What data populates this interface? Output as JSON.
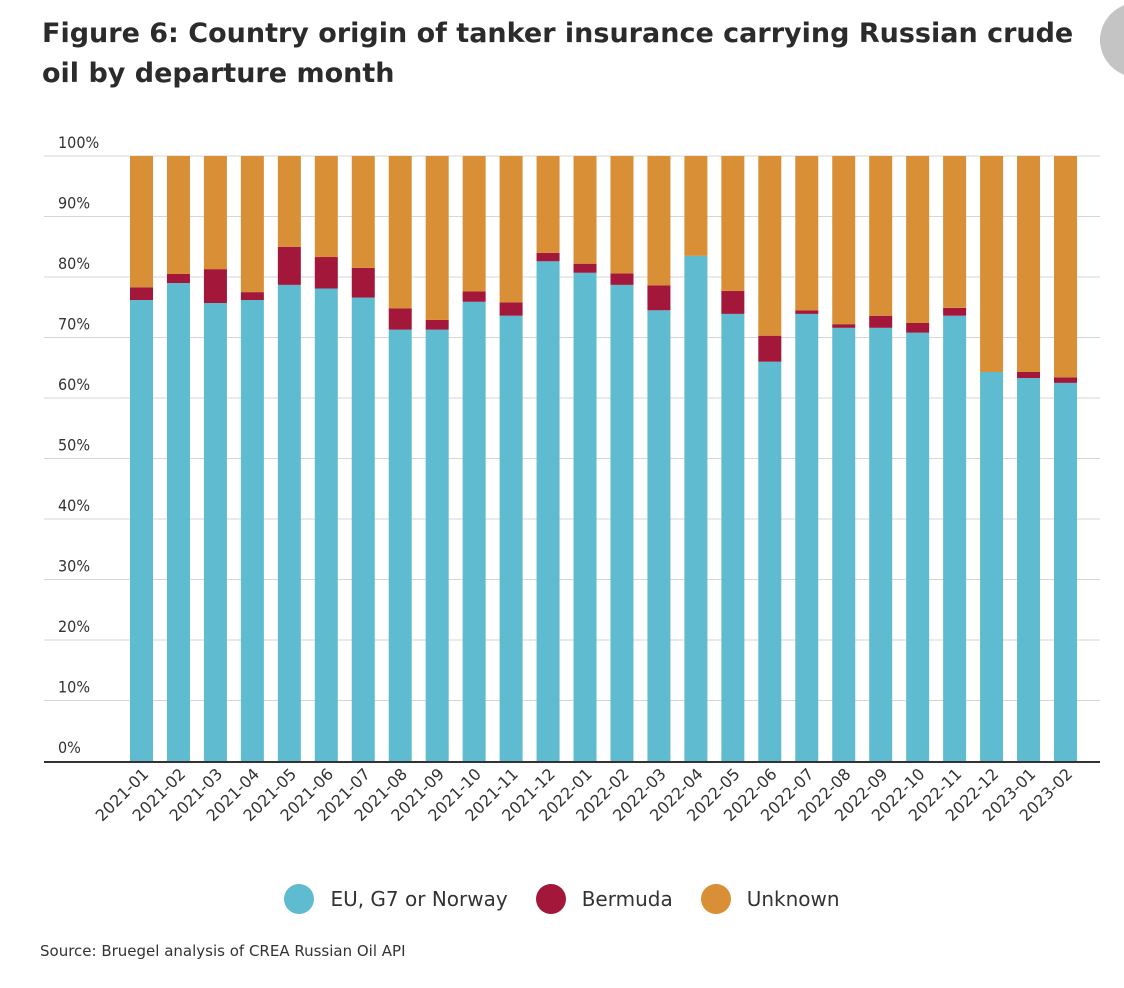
{
  "title": "Figure 6: Country origin of tanker insurance carrying Russian crude oil by departure month",
  "source": "Source: Bruegel analysis of CREA Russian Oil API",
  "colors": {
    "eu": "#5fbbcf",
    "bermuda": "#a3173a",
    "unknown": "#d98f35",
    "grid": "#d6d6d6",
    "axis": "#333333"
  },
  "chart_data": {
    "type": "bar",
    "stacked": true,
    "title": "Figure 6: Country origin of tanker insurance carrying Russian crude oil by departure month",
    "xlabel": "",
    "ylabel": "",
    "ylim": [
      0,
      100
    ],
    "y_ticks": [
      "0%",
      "10%",
      "20%",
      "30%",
      "40%",
      "50%",
      "60%",
      "70%",
      "80%",
      "90%",
      "100%"
    ],
    "grid": true,
    "legend_position": "bottom",
    "categories": [
      "2021-01",
      "2021-02",
      "2021-03",
      "2021-04",
      "2021-05",
      "2021-06",
      "2021-07",
      "2021-08",
      "2021-09",
      "2021-10",
      "2021-11",
      "2021-12",
      "2022-01",
      "2022-02",
      "2022-03",
      "2022-04",
      "2022-05",
      "2022-06",
      "2022-07",
      "2022-08",
      "2022-09",
      "2022-10",
      "2022-11",
      "2022-12",
      "2023-01",
      "2023-02"
    ],
    "series": [
      {
        "name": "EU, G7 or Norway",
        "values": [
          76.2,
          79.0,
          75.7,
          76.2,
          78.7,
          78.1,
          76.6,
          71.3,
          71.3,
          75.9,
          73.6,
          82.6,
          80.7,
          78.7,
          74.5,
          83.5,
          73.9,
          66.0,
          73.9,
          71.6,
          71.6,
          70.8,
          73.6,
          64.3,
          63.3,
          62.5
        ]
      },
      {
        "name": "Bermuda",
        "values": [
          2.1,
          1.5,
          5.6,
          1.3,
          6.3,
          5.2,
          4.9,
          3.5,
          1.6,
          1.7,
          2.2,
          1.4,
          1.5,
          1.9,
          4.1,
          0.0,
          3.8,
          4.3,
          0.6,
          0.6,
          2.0,
          1.6,
          1.3,
          0.0,
          1.0,
          0.9
        ]
      },
      {
        "name": "Unknown",
        "values": [
          21.7,
          19.5,
          18.7,
          22.5,
          15.0,
          16.7,
          18.5,
          25.2,
          27.1,
          22.4,
          24.2,
          16.0,
          17.8,
          19.4,
          21.4,
          16.5,
          22.3,
          29.7,
          25.5,
          27.8,
          26.4,
          27.6,
          25.1,
          35.7,
          35.7,
          36.6
        ]
      }
    ]
  }
}
